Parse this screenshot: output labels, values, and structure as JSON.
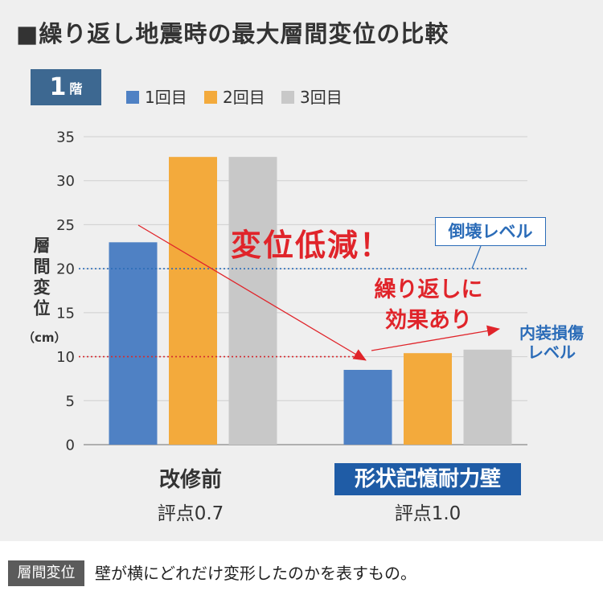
{
  "title": "■繰り返し地震時の最大層間変位の比較",
  "floor_badge": {
    "number": "1",
    "unit": "階"
  },
  "colors": {
    "background": "#efefef",
    "badge": "#3d6891",
    "highlight": "#1f5ca6",
    "annotation": "#e0242a",
    "collapse_level": "#2b6cb8",
    "damage_level": "#d42a2f",
    "footer_term": "#5b5b5b"
  },
  "chart_data": {
    "type": "bar",
    "categories": [
      "改修前",
      "形状記憶耐力壁"
    ],
    "category_scores": [
      "評点0.7",
      "評点1.0"
    ],
    "series": [
      {
        "name": "1回目",
        "values": [
          23.0,
          8.5
        ],
        "color": "#4f81c4"
      },
      {
        "name": "2回目",
        "values": [
          32.7,
          10.4
        ],
        "color": "#f3aa3c"
      },
      {
        "name": "3回目",
        "values": [
          32.7,
          10.8
        ],
        "color": "#c8c8c8"
      }
    ],
    "ylabel": "層間変位",
    "yunit": "（cm）",
    "ylim": [
      0,
      35
    ],
    "yticks": [
      0,
      5,
      10,
      15,
      20,
      25,
      30,
      35
    ],
    "grid": true,
    "legend": "top",
    "reference_lines": [
      {
        "value": 20,
        "label": "倒壊レベル",
        "color": "#2b6cb8"
      },
      {
        "value": 10,
        "label_lines": [
          "内装損傷",
          "レベル"
        ],
        "color": "#d42a2f"
      }
    ],
    "annotations": {
      "headline": "変位低減！",
      "note_lines": [
        "繰り返しに",
        "効果あり"
      ]
    }
  },
  "footer": {
    "term": "層間変位",
    "definition": "壁が横にどれだけ変形したのかを表すもの。"
  }
}
